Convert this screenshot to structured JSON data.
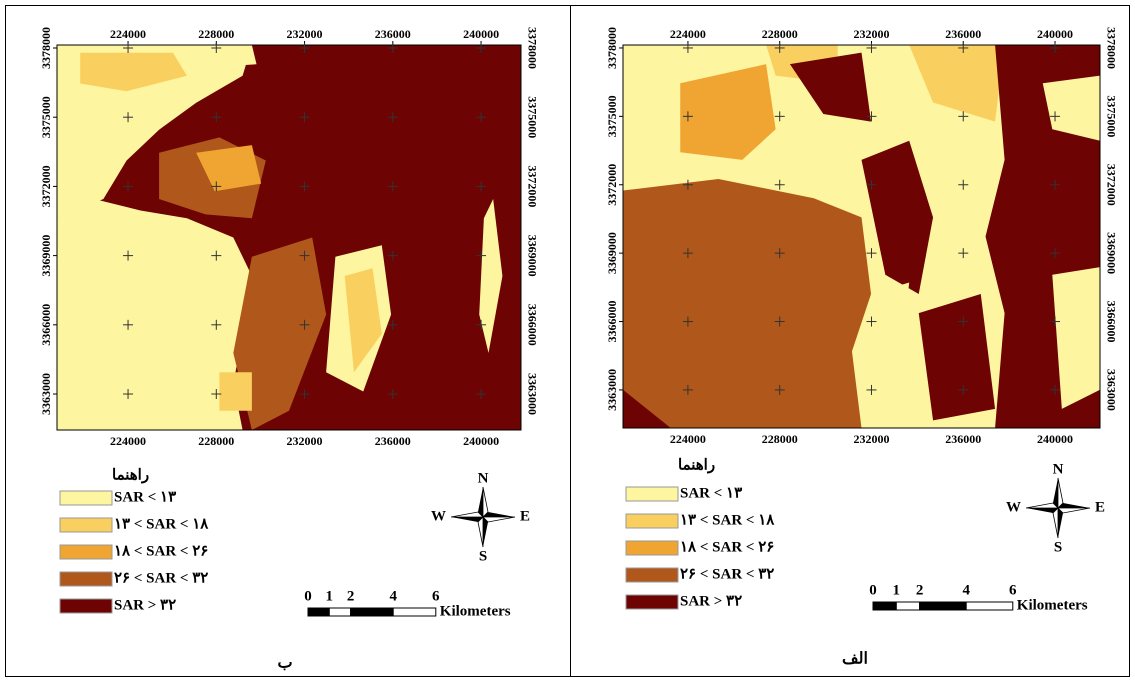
{
  "panels": [
    {
      "caption": "ب",
      "xlim": [
        220780,
        241810
      ],
      "ylim": [
        3361440,
        3378130
      ],
      "xticks": [
        224000,
        228000,
        232000,
        236000,
        240000
      ],
      "yticks": [
        3363000,
        3366000,
        3369000,
        3372000,
        3375000,
        3378000
      ],
      "legend": {
        "title": "راهنما",
        "items": [
          {
            "label": "SAR < ۱۳",
            "color": "#fdf59f"
          },
          {
            "label": "۱۳ < SAR < ۱۸",
            "color": "#f9d060"
          },
          {
            "label": "۱۸ < SAR < ۲۶",
            "color": "#f0a532"
          },
          {
            "label": "۲۶ < SAR < ۳۲",
            "color": "#b0581b"
          },
          {
            "label": "SAR > ۳۲",
            "color": "#6e0303"
          }
        ]
      },
      "compass": {
        "north": "N",
        "south": "S",
        "east": "E",
        "west": "W"
      },
      "scale_bar": {
        "ticks": [
          0,
          1,
          2,
          4,
          6
        ],
        "unit": "Kilometers"
      }
    },
    {
      "caption": "الف",
      "xlim": [
        221170,
        241960
      ],
      "ylim": [
        3361330,
        3378130
      ],
      "xticks": [
        224000,
        228000,
        232000,
        236000,
        240000
      ],
      "yticks": [
        3363000,
        3366000,
        3369000,
        3372000,
        3375000,
        3378000
      ],
      "legend": {
        "title": "راهنما",
        "items": [
          {
            "label": "SAR < ۱۳",
            "color": "#fdf59f"
          },
          {
            "label": "۱۳ < SAR < ۱۸",
            "color": "#f9d060"
          },
          {
            "label": "۱۸ < SAR < ۲۶",
            "color": "#f0a532"
          },
          {
            "label": "۲۶ < SAR < ۳۲",
            "color": "#b0581b"
          },
          {
            "label": "SAR > ۳۲",
            "color": "#6e0303"
          }
        ]
      },
      "compass": {
        "north": "N",
        "south": "S",
        "east": "E",
        "west": "W"
      },
      "scale_bar": {
        "ticks": [
          0,
          1,
          2,
          4,
          6
        ],
        "unit": "Kilometers"
      }
    }
  ]
}
